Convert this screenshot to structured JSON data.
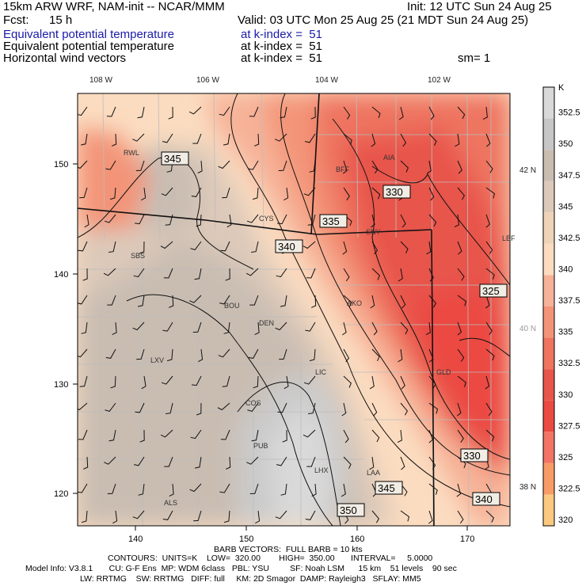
{
  "header": {
    "model": "15km ARW WRF, NAM-init -- NCAR/MMM",
    "init": "Init: 12 UTC Sun 24 Aug 25",
    "fcst_label": "Fcst:",
    "fcst_value": "15 h",
    "valid": "Valid: 03 UTC Mon 25 Aug 25 (21 MDT Sun 24 Aug 25)",
    "fields": [
      {
        "name": "Equivalent potential temperature",
        "level": "at k-index =  51",
        "extra": ""
      },
      {
        "name": "Equivalent potential temperature",
        "level": "at k-index =  51",
        "extra": ""
      },
      {
        "name": "Horizontal wind vectors",
        "level": "at k-index =  51",
        "extra": "sm= 1"
      }
    ]
  },
  "map": {
    "lon_labels": [
      "108 W",
      "106 W",
      "104 W",
      "102 W"
    ],
    "lat_labels": [
      "42 N",
      "40 N",
      "38 N"
    ],
    "x_ticks": [
      "140",
      "150",
      "160",
      "170"
    ],
    "y_ticks": [
      "150",
      "140",
      "130",
      "120"
    ],
    "cities": [
      {
        "name": "RWL"
      },
      {
        "name": "BFF"
      },
      {
        "name": "AIA"
      },
      {
        "name": "CYS"
      },
      {
        "name": "SNY"
      },
      {
        "name": "SBS"
      },
      {
        "name": "LBF"
      },
      {
        "name": "BOU"
      },
      {
        "name": "AKO"
      },
      {
        "name": "DEN"
      },
      {
        "name": "LXV"
      },
      {
        "name": "LIC"
      },
      {
        "name": "COS"
      },
      {
        "name": "GLD"
      },
      {
        "name": "PUB"
      },
      {
        "name": "LHX"
      },
      {
        "name": "LAA"
      },
      {
        "name": "ALS"
      }
    ],
    "contour_labels": [
      "345",
      "330",
      "335",
      "340",
      "325",
      "330",
      "345",
      "350",
      "340"
    ]
  },
  "colorbar": {
    "unit": "K",
    "levels": [
      "352.5",
      "350",
      "347.5",
      "345",
      "342.5",
      "340",
      "337.5",
      "335",
      "332.5",
      "330",
      "327.5",
      "325",
      "322.5",
      "320"
    ],
    "colors": [
      "#d9d9d9",
      "#c6c6c6",
      "#c9bdb2",
      "#dcc9b9",
      "#efd3b8",
      "#fbdcc0",
      "#f6b298",
      "#f39478",
      "#ee7460",
      "#e8554b",
      "#eb4a43",
      "#f27464",
      "#f89b66",
      "#fbc880"
    ]
  },
  "footer": {
    "barb": "BARB VECTORS:  FULL BARB = 10 kts",
    "contours": "CONTOURS:  UNITS=K    LOW=  320.00        HIGH=  350.00       INTERVAL=     5.0000",
    "model_info_1": "Model Info: V3.8.1       CU: G-F Ens  MP: WDM 6class   PBL: YSU         SF: Noah LSM      15 km    51 levels    90 sec",
    "model_info_2": "LW: RRTMG    SW: RRTMG   DIFF: full     KM: 2D Smagor  DAMP: Rayleigh3   SFLAY: MM5"
  }
}
